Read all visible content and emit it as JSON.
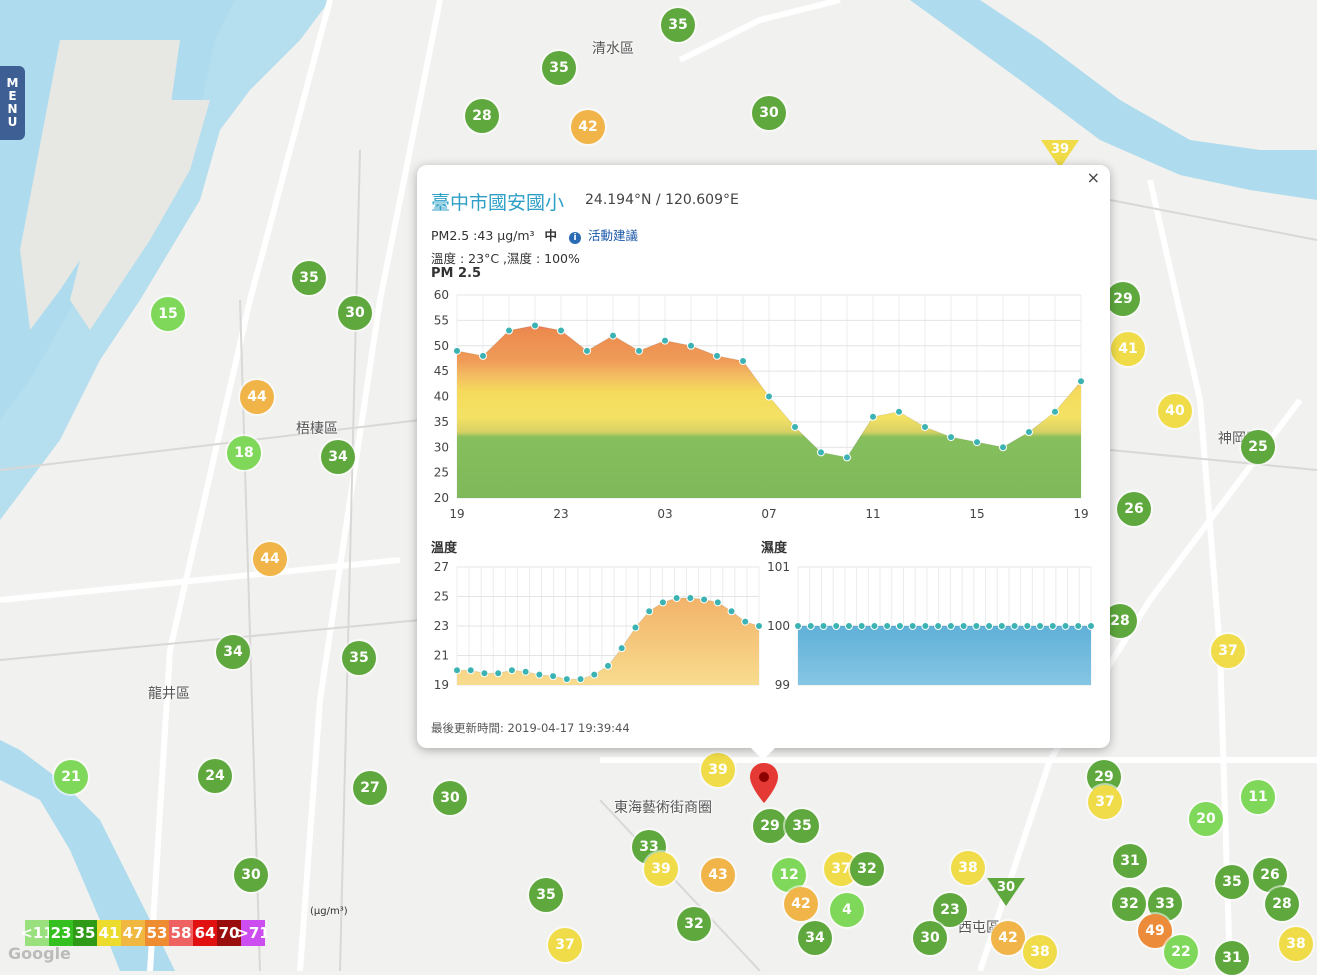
{
  "menu": {
    "label": "MENU",
    "letters": [
      "M",
      "E",
      "N",
      "U"
    ]
  },
  "places": {
    "qingshui": "清水區",
    "wuqi": "梧棲區",
    "longjing": "龍井區",
    "donghai": "東海藝術街商圈",
    "shenggang": "神岡區",
    "xitun": "西屯區"
  },
  "markers": [
    {
      "v": "35",
      "c": "#5ea83e"
    },
    {
      "v": "35",
      "c": "#5ea83e"
    },
    {
      "v": "28",
      "c": "#5ea83e"
    },
    {
      "v": "42",
      "c": "#f0b448"
    },
    {
      "v": "30",
      "c": "#5ea83e"
    },
    {
      "v": "35",
      "c": "#5ea83e"
    },
    {
      "v": "15",
      "c": "#7fd85a"
    },
    {
      "v": "30",
      "c": "#5ea83e"
    },
    {
      "v": "44",
      "c": "#f0b448"
    },
    {
      "v": "18",
      "c": "#7fd85a"
    },
    {
      "v": "34",
      "c": "#5ea83e"
    },
    {
      "v": "44",
      "c": "#f0b448"
    },
    {
      "v": "34",
      "c": "#5ea83e"
    },
    {
      "v": "35",
      "c": "#5ea83e"
    },
    {
      "v": "21",
      "c": "#7fd85a"
    },
    {
      "v": "24",
      "c": "#5ea83e"
    },
    {
      "v": "27",
      "c": "#5ea83e"
    },
    {
      "v": "30",
      "c": "#5ea83e"
    },
    {
      "v": "30",
      "c": "#5ea83e"
    },
    {
      "v": "35",
      "c": "#5ea83e"
    },
    {
      "v": "37",
      "c": "#f0dc48"
    },
    {
      "v": "32",
      "c": "#5ea83e"
    },
    {
      "v": "39",
      "c": "#f0dc48"
    },
    {
      "v": "33",
      "c": "#5ea83e"
    },
    {
      "v": "39",
      "c": "#f0dc48"
    },
    {
      "v": "43",
      "c": "#f0b448"
    },
    {
      "v": "29",
      "c": "#5ea83e"
    },
    {
      "v": "35",
      "c": "#5ea83e"
    },
    {
      "v": "12",
      "c": "#7fd85a"
    },
    {
      "v": "37",
      "c": "#f0dc48"
    },
    {
      "v": "32",
      "c": "#5ea83e"
    },
    {
      "v": "42",
      "c": "#f0b448"
    },
    {
      "v": "34",
      "c": "#5ea83e"
    },
    {
      "v": "38",
      "c": "#f0dc48"
    },
    {
      "v": "23",
      "c": "#5ea83e"
    },
    {
      "v": "30",
      "c": "#5ea83e"
    },
    {
      "v": "42",
      "c": "#f0b448"
    },
    {
      "v": "38",
      "c": "#f0dc48"
    },
    {
      "v": "29",
      "c": "#5ea83e"
    },
    {
      "v": "41",
      "c": "#f0dc48"
    },
    {
      "v": "40",
      "c": "#f0dc48"
    },
    {
      "v": "25",
      "c": "#5ea83e"
    },
    {
      "v": "26",
      "c": "#5ea83e"
    },
    {
      "v": "28",
      "c": "#5ea83e"
    },
    {
      "v": "37",
      "c": "#f0dc48"
    },
    {
      "v": "29",
      "c": "#5ea83e"
    },
    {
      "v": "37",
      "c": "#f0dc48"
    },
    {
      "v": "11",
      "c": "#7fd85a"
    },
    {
      "v": "20",
      "c": "#7fd85a"
    },
    {
      "v": "31",
      "c": "#5ea83e"
    },
    {
      "v": "35",
      "c": "#5ea83e"
    },
    {
      "v": "26",
      "c": "#5ea83e"
    },
    {
      "v": "32",
      "c": "#5ea83e"
    },
    {
      "v": "33",
      "c": "#5ea83e"
    },
    {
      "v": "49",
      "c": "#ec8b3a"
    },
    {
      "v": "28",
      "c": "#5ea83e"
    },
    {
      "v": "22",
      "c": "#7fd85a"
    },
    {
      "v": "31",
      "c": "#5ea83e"
    },
    {
      "v": "38",
      "c": "#f0dc48"
    },
    {
      "v": "4",
      "c": "#7fd85a"
    }
  ],
  "triangles": [
    {
      "v": "39",
      "c": "#f0dc48"
    },
    {
      "v": "30",
      "c": "#5ea83e"
    }
  ],
  "popup": {
    "close": "×",
    "station": "臺中市國安國小",
    "coords": "24.194°N / 120.609°E",
    "pm_text": "PM2.5 :43 μg/m³",
    "pm_level": "中",
    "info_icon": "i",
    "advice": "活動建議",
    "temp_humid": "溫度 : 23°C ,濕度 : 100%",
    "pm_chart_title": "PM 2.5",
    "temp_chart_title": "溫度",
    "humid_chart_title": "濕度",
    "updated": "最後更新時間: 2019-04-17 19:39:44"
  },
  "chart_data": [
    {
      "type": "area",
      "title": "PM 2.5",
      "x_tick_labels": [
        "19",
        "23",
        "03",
        "07",
        "11",
        "15",
        "19"
      ],
      "y_ticks": [
        20,
        25,
        30,
        35,
        40,
        45,
        50,
        55,
        60
      ],
      "ylim": [
        20,
        60
      ],
      "values": [
        49,
        48,
        53,
        54,
        53,
        49,
        52,
        49,
        51,
        50,
        48,
        47,
        40,
        34,
        29,
        28,
        36,
        37,
        34,
        32,
        31,
        30,
        33,
        37,
        43
      ],
      "grid": true
    },
    {
      "type": "area",
      "title": "溫度",
      "y_ticks": [
        19,
        21,
        23,
        25,
        27
      ],
      "ylim": [
        19,
        27
      ],
      "values": [
        20,
        20,
        19.8,
        19.8,
        20,
        19.9,
        19.7,
        19.6,
        19.4,
        19.4,
        19.7,
        20.3,
        21.5,
        22.9,
        24,
        24.6,
        24.9,
        24.9,
        24.8,
        24.6,
        24,
        23.3,
        23
      ],
      "grid": true
    },
    {
      "type": "area",
      "title": "濕度",
      "y_ticks": [
        99,
        100,
        101
      ],
      "ylim": [
        99,
        101
      ],
      "values": [
        100,
        100,
        100,
        100,
        100,
        100,
        100,
        100,
        100,
        100,
        100,
        100,
        100,
        100,
        100,
        100,
        100,
        100,
        100,
        100,
        100,
        100,
        100,
        100
      ],
      "grid": true
    }
  ],
  "legend": {
    "unit": "(μg/m³)",
    "items": [
      {
        "label": "<11",
        "c": "#9be07f"
      },
      {
        "label": "23",
        "c": "#34c11f"
      },
      {
        "label": "35",
        "c": "#2f9a16"
      },
      {
        "label": "41",
        "c": "#ecdc2e"
      },
      {
        "label": "47",
        "c": "#f0b840"
      },
      {
        "label": "53",
        "c": "#ee8c32"
      },
      {
        "label": "58",
        "c": "#ee6262"
      },
      {
        "label": "64",
        "c": "#e21111"
      },
      {
        "label": "70",
        "c": "#9a0d0d"
      },
      {
        "label": ">71",
        "c": "#cc4ef0"
      }
    ]
  },
  "map_attribution": "Google"
}
